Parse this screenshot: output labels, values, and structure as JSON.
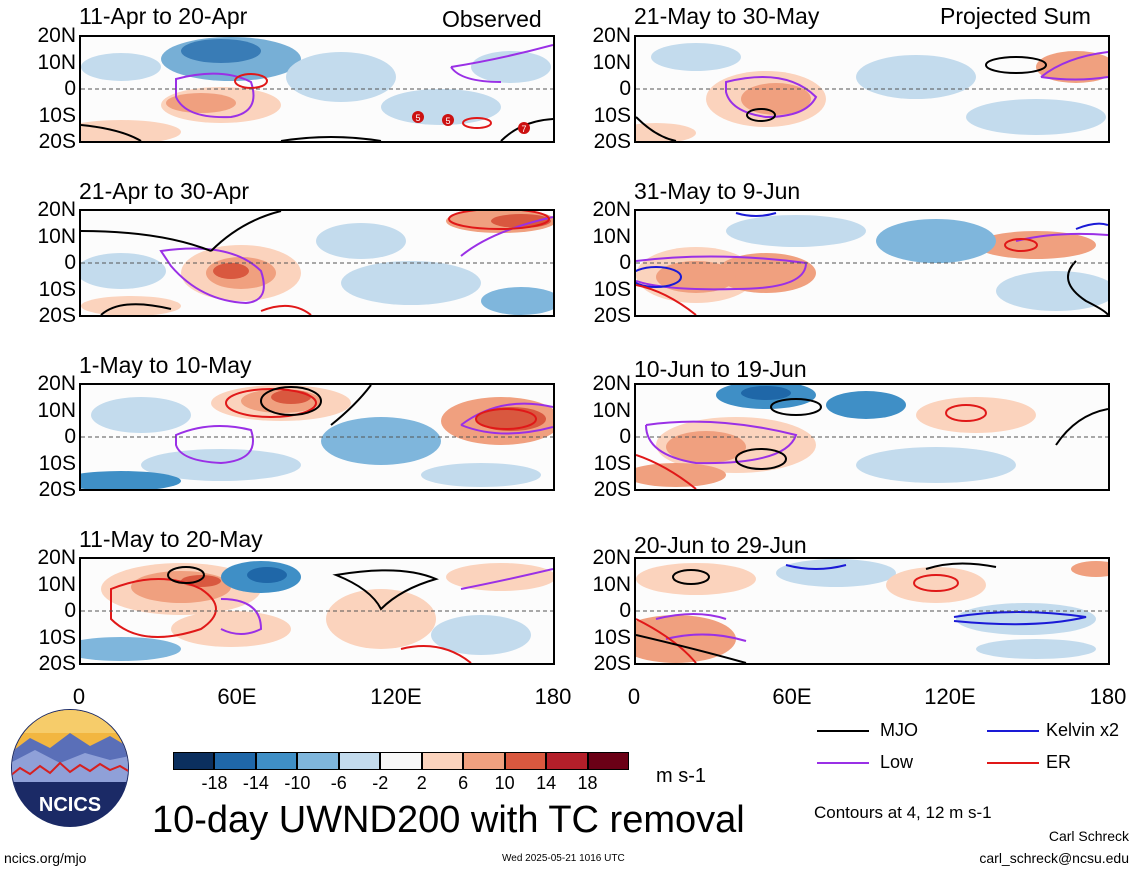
{
  "headers": {
    "observed": "Observed",
    "projected": "Projected Sum"
  },
  "lat_ticks": [
    "20N",
    "10N",
    "0",
    "10S",
    "20S"
  ],
  "lon_ticks": [
    "0",
    "60E",
    "120E",
    "180"
  ],
  "panels": [
    {
      "title": "11-Apr to 20-Apr"
    },
    {
      "title": "21-Apr to 30-Apr"
    },
    {
      "title": "1-May to 10-May"
    },
    {
      "title": "11-May to 20-May"
    },
    {
      "title": "21-May to 30-May"
    },
    {
      "title": "31-May to 9-Jun"
    },
    {
      "title": "10-Jun to 19-Jun"
    },
    {
      "title": "20-Jun to 29-Jun"
    }
  ],
  "tc_markers": [
    "5",
    "5",
    "7"
  ],
  "colorbar": {
    "labels": [
      "-18",
      "-14",
      "-10",
      "-6",
      "-2",
      "2",
      "6",
      "10",
      "14",
      "18"
    ],
    "colors": [
      "#0b2f5e",
      "#1f67a8",
      "#3f8fc6",
      "#7fb6dc",
      "#c3dbed",
      "#f7f7f7",
      "#fbd3bd",
      "#f0a07f",
      "#d9583f",
      "#b41f2a",
      "#6b0016"
    ],
    "units": "m s-1"
  },
  "legend": [
    {
      "label": "MJO",
      "color": "#000000"
    },
    {
      "label": "Kelvin x2",
      "color": "#1a1ad6"
    },
    {
      "label": "Low",
      "color": "#9a30e6"
    },
    {
      "label": "ER",
      "color": "#e01818"
    }
  ],
  "contours_note": "Contours at 4, 12 m s-1",
  "main_title": "10-day UWND200 with TC removal",
  "logo_text": "NCICS",
  "footer": {
    "url": "ncics.org/mjo",
    "timestamp": "Wed 2025-05-21 1016 UTC",
    "author": "Carl Schreck",
    "email": "carl_schreck@ncsu.edu"
  }
}
